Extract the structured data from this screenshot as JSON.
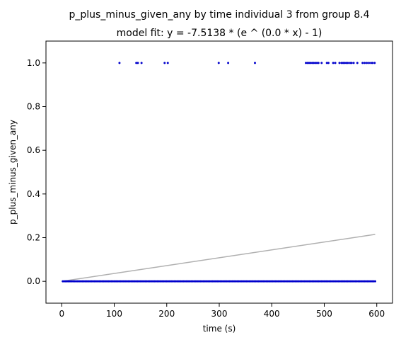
{
  "chart_data": {
    "type": "scatter",
    "title": "p_plus_minus_given_any by time individual 3 from group 8.4",
    "subtitle": "model fit: y = -7.5138 * (e ^ (0.0 * x) - 1)",
    "xlabel": "time (s)",
    "ylabel": "p_plus_minus_given_any",
    "xlim": [
      -30,
      630
    ],
    "ylim": [
      -0.1,
      1.1
    ],
    "xticks": [
      0,
      100,
      200,
      300,
      400,
      500,
      600
    ],
    "yticks": [
      0.0,
      0.2,
      0.4,
      0.6,
      0.8,
      1.0
    ],
    "xtick_labels": [
      "0",
      "100",
      "200",
      "300",
      "400",
      "500",
      "600"
    ],
    "ytick_labels": [
      "0.0",
      "0.2",
      "0.4",
      "0.6",
      "0.8",
      "1.0"
    ],
    "grid": false,
    "point_color": "#0000cc",
    "fit_color": "#b0b0b0",
    "points_y1_x": [
      110,
      142,
      145,
      152,
      196,
      202,
      299,
      317,
      368,
      465,
      468,
      471,
      474,
      477,
      480,
      483,
      486,
      489,
      495,
      505,
      508,
      517,
      521,
      529,
      533,
      536,
      539,
      542,
      545,
      549,
      552,
      556,
      563,
      573,
      577,
      581,
      585,
      589,
      592,
      596
    ],
    "points_y0_range": [
      2,
      597
    ],
    "points_y0_step": 2.5,
    "fit_line": {
      "x": [
        0,
        597
      ],
      "y": [
        0.0,
        0.215
      ]
    }
  }
}
